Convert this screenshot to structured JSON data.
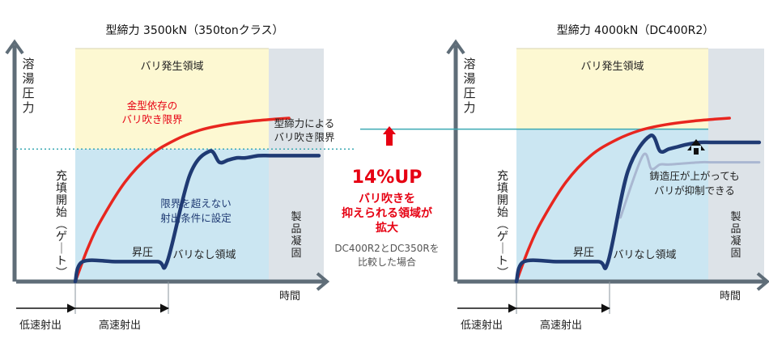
{
  "chart_data": [
    {
      "type": "line",
      "title": "型締力 3500kN（350tonクラス）",
      "ylabel": "溶湯圧力",
      "xlabel": "時間",
      "xlim": [
        0,
        10
      ],
      "ylim": [
        0,
        100
      ],
      "regions": {
        "flash": "バリ発生領域",
        "no_flash": "バリなし領域",
        "solidify": "製品凝固"
      },
      "phase_gate": "充填開始（ゲート）",
      "phase_low": "低速射出",
      "phase_high": "高速射出",
      "rise_label": "昇圧",
      "annotation_limit": [
        "金型依存の",
        "バリ吹き限界"
      ],
      "annotation_conditions": [
        "限界を超えない",
        "射出条件に設定"
      ],
      "flash_limit_label": [
        "型締力による",
        "バリ吹き限界"
      ],
      "clamp_limit_level": 60,
      "series": [
        {
          "values": [
            [
              0,
              0
            ],
            [
              0.5,
              15
            ],
            [
              1,
              27
            ],
            [
              2,
              45
            ],
            [
              3,
              57
            ],
            [
              4,
              64
            ],
            [
              5,
              68.5
            ],
            [
              6,
              71
            ],
            [
              7,
              72.5
            ],
            [
              8,
              73.5
            ],
            [
              8.6,
              74
            ]
          ]
        },
        {
          "values": [
            [
              0,
              0
            ],
            [
              0.3,
              9
            ],
            [
              1.7,
              9
            ],
            [
              3.3,
              9
            ],
            [
              3.7,
              9
            ],
            [
              4.6,
              48
            ],
            [
              5.4,
              59
            ],
            [
              5.8,
              54
            ],
            [
              6.15,
              55
            ],
            [
              6.5,
              56
            ],
            [
              6.85,
              56
            ],
            [
              7.4,
              57
            ],
            [
              8,
              57
            ],
            [
              9.8,
              57
            ]
          ]
        }
      ]
    },
    {
      "type": "line",
      "title": "型締力 4000kN（DC400R2）",
      "ylabel": "溶湯圧力",
      "xlabel": "時間",
      "xlim": [
        0,
        10
      ],
      "ylim": [
        0,
        100
      ],
      "regions": {
        "flash": "バリ発生領域",
        "no_flash": "バリなし領域",
        "solidify": "製品凝固"
      },
      "phase_gate": "充填開始（ゲート）",
      "phase_low": "低速射出",
      "phase_high": "高速射出",
      "rise_label": "昇圧",
      "annotation_limit": [
        "鋳造圧が上がっても",
        "バリが抑制できる"
      ],
      "clamp_limit_level": 69,
      "series": [
        {
          "values": [
            [
              0,
              0
            ],
            [
              0.5,
              15
            ],
            [
              1,
              27
            ],
            [
              2,
              45
            ],
            [
              3,
              57
            ],
            [
              4,
              64
            ],
            [
              5,
              68.5
            ],
            [
              6,
              71
            ],
            [
              7,
              72.5
            ],
            [
              8,
              73.5
            ],
            [
              8.6,
              74
            ]
          ]
        },
        {
          "values": [
            [
              0,
              0
            ],
            [
              0.3,
              9
            ],
            [
              1.7,
              9
            ],
            [
              3.3,
              9
            ],
            [
              3.7,
              9
            ],
            [
              4.5,
              50
            ],
            [
              5.4,
              66
            ],
            [
              5.8,
              59
            ],
            [
              6.15,
              60
            ],
            [
              6.5,
              61
            ],
            [
              6.85,
              62
            ],
            [
              7.4,
              63
            ],
            [
              8,
              63
            ],
            [
              9.8,
              63
            ]
          ]
        },
        {
          "values": [
            [
              4.2,
              29
            ],
            [
              5.1,
              57
            ],
            [
              5.45,
              51
            ],
            [
              5.8,
              53
            ],
            [
              6.2,
              53
            ],
            [
              7.4,
              54
            ],
            [
              8,
              54
            ],
            [
              9.8,
              54
            ]
          ]
        }
      ]
    }
  ],
  "center": {
    "headline": "14%UP",
    "subline": [
      "バリ吹きを",
      "抑えられる領域が",
      "拡大"
    ],
    "note": [
      "DC400R2とDC350Rを",
      "比較した場合"
    ]
  },
  "colors": {
    "flash_zone": "#fdf8d2",
    "no_flash_zone": "#cbe6f2",
    "solidify_zone": "#dde3e8",
    "limit_curve": "#e8261f",
    "pressure_curve": "#1f3a73",
    "old_curve": "#a9b7d1",
    "limit_line": "#3ba9b3",
    "accent_red": "#e60012",
    "axis": "#5f6d78"
  }
}
